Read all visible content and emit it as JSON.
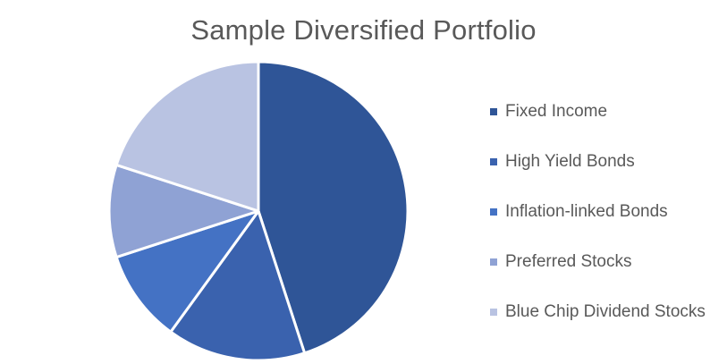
{
  "chart_data": {
    "type": "pie",
    "title": "Sample Diversified Portfolio",
    "legend_position": "right",
    "series": [
      {
        "labels": [
          "Fixed Income",
          "High Yield Bonds",
          "Inflation-linked Bonds",
          "Preferred Stocks",
          "Blue Chip Dividend Stocks"
        ],
        "values": [
          45,
          15,
          10,
          10,
          20
        ],
        "colors": [
          "#2F5597",
          "#3A62AE",
          "#4472C4",
          "#8FA2D4",
          "#B9C3E2"
        ]
      }
    ]
  }
}
